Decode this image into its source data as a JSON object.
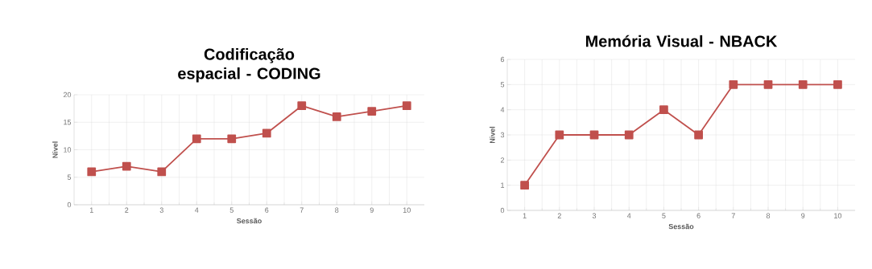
{
  "chart_data": [
    {
      "type": "line",
      "title": "Codificação espacial - CODING",
      "xlabel": "Sessão",
      "ylabel": "Nivel",
      "categories": [
        "1",
        "2",
        "3",
        "4",
        "5",
        "6",
        "7",
        "8",
        "9",
        "10"
      ],
      "series": [
        {
          "color": "#c0504d",
          "values": [
            6,
            7,
            6,
            12,
            12,
            13,
            18,
            16,
            17,
            18
          ]
        }
      ],
      "ylim": [
        0,
        20
      ],
      "yticks": [
        0,
        5,
        10,
        15,
        20
      ],
      "grid": true,
      "marker": "square",
      "line_style": "solid"
    },
    {
      "type": "line",
      "title": "Memória Visual - NBACK",
      "xlabel": "Sessão",
      "ylabel": "Nivel",
      "categories": [
        "1",
        "2",
        "3",
        "4",
        "5",
        "6",
        "7",
        "8",
        "9",
        "10"
      ],
      "series": [
        {
          "color": "#c0504d",
          "values": [
            1,
            3,
            3,
            3,
            4,
            3,
            5,
            5,
            5,
            5
          ]
        }
      ],
      "ylim": [
        0,
        6
      ],
      "yticks": [
        0,
        1,
        2,
        3,
        4,
        5,
        6
      ],
      "grid": true,
      "marker": "square",
      "line_style": "solid"
    }
  ]
}
